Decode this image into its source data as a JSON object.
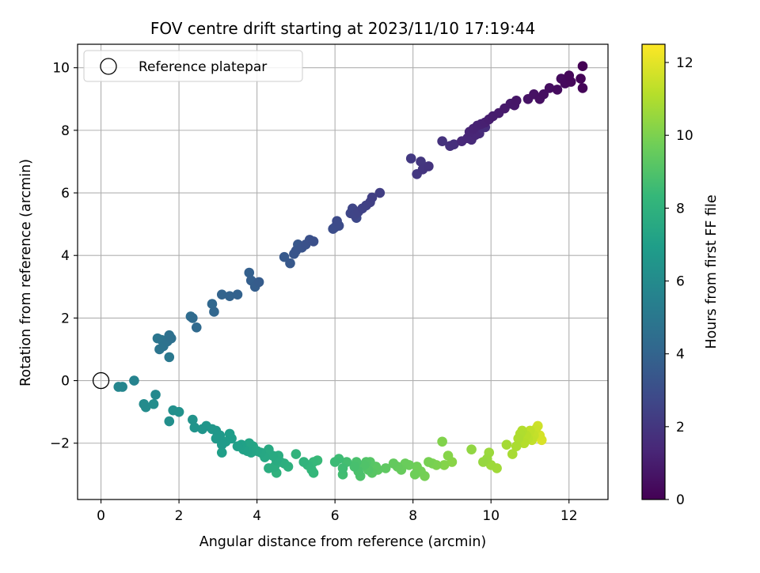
{
  "chart_data": {
    "type": "scatter",
    "title": "FOV centre drift starting at 2023/11/10 17:19:44",
    "xlabel": "Angular distance from reference (arcmin)",
    "ylabel": "Rotation from reference (arcmin)",
    "colorbar_label": "Hours from first FF file",
    "xlim": [
      -0.6,
      13.0
    ],
    "ylim": [
      -3.8,
      10.75
    ],
    "xticks": [
      0,
      2,
      4,
      6,
      8,
      10,
      12
    ],
    "yticks": [
      -2,
      0,
      2,
      4,
      6,
      8,
      10
    ],
    "colorbar_range": [
      0,
      12.5
    ],
    "colorbar_ticks": [
      0,
      2,
      4,
      6,
      8,
      10,
      12
    ],
    "colormap": "viridis",
    "grid": true,
    "legend": {
      "placement": "top-left",
      "label": "Reference platepar"
    },
    "reference_point": {
      "x": 0,
      "y": 0
    },
    "colors": {
      "grid": "#b0b0b0",
      "viridis_stops": [
        "#440154",
        "#482878",
        "#3e4989",
        "#31688e",
        "#26828e",
        "#1f9e89",
        "#35b779",
        "#6ece58",
        "#b5de2b",
        "#fde725"
      ]
    },
    "series": [
      {
        "points": [
          [
            12.35,
            10.05,
            0.05
          ],
          [
            12.3,
            9.65,
            0.1
          ],
          [
            12.35,
            9.35,
            0.15
          ],
          [
            12.0,
            9.75,
            0.2
          ],
          [
            12.05,
            9.55,
            0.25
          ],
          [
            11.9,
            9.5,
            0.3
          ],
          [
            11.8,
            9.65,
            0.35
          ],
          [
            11.7,
            9.3,
            0.4
          ],
          [
            11.5,
            9.35,
            0.45
          ],
          [
            11.35,
            9.15,
            0.5
          ],
          [
            11.25,
            9.0,
            0.55
          ],
          [
            11.1,
            9.15,
            0.6
          ],
          [
            10.95,
            9.0,
            0.65
          ],
          [
            10.65,
            8.95,
            0.75
          ],
          [
            10.6,
            8.8,
            0.8
          ],
          [
            10.5,
            8.85,
            0.85
          ],
          [
            10.35,
            8.7,
            0.9
          ],
          [
            10.2,
            8.55,
            0.95
          ],
          [
            10.05,
            8.45,
            1.0
          ],
          [
            9.95,
            8.35,
            1.05
          ],
          [
            9.85,
            8.25,
            1.1
          ],
          [
            9.75,
            8.2,
            1.15
          ],
          [
            9.65,
            8.15,
            1.2
          ],
          [
            9.55,
            8.05,
            1.25
          ],
          [
            9.45,
            7.95,
            1.3
          ],
          [
            9.6,
            7.85,
            1.35
          ],
          [
            9.4,
            7.75,
            1.4
          ],
          [
            9.25,
            7.65,
            1.45
          ],
          [
            9.5,
            7.7,
            1.5
          ],
          [
            9.7,
            7.9,
            1.55
          ],
          [
            9.85,
            8.1,
            1.6
          ],
          [
            9.05,
            7.55,
            1.7
          ],
          [
            8.95,
            7.5,
            1.75
          ],
          [
            8.75,
            7.65,
            1.8
          ],
          [
            8.4,
            6.85,
            1.9
          ],
          [
            8.25,
            6.75,
            1.95
          ],
          [
            8.2,
            7.0,
            2.0
          ],
          [
            8.1,
            6.6,
            2.05
          ],
          [
            7.95,
            7.1,
            2.1
          ],
          [
            7.15,
            6.0,
            2.3
          ],
          [
            6.95,
            5.85,
            2.35
          ],
          [
            6.9,
            5.7,
            2.4
          ],
          [
            6.8,
            5.6,
            2.45
          ],
          [
            6.7,
            5.5,
            2.5
          ],
          [
            6.6,
            5.4,
            2.55
          ],
          [
            6.5,
            5.3,
            2.6
          ],
          [
            6.45,
            5.5,
            2.65
          ],
          [
            6.4,
            5.35,
            2.7
          ],
          [
            6.55,
            5.2,
            2.75
          ],
          [
            6.05,
            5.1,
            2.85
          ],
          [
            6.1,
            4.95,
            2.9
          ],
          [
            5.95,
            4.85,
            2.95
          ],
          [
            6.0,
            4.9,
            3.0
          ],
          [
            5.45,
            4.45,
            3.1
          ],
          [
            5.35,
            4.5,
            3.15
          ],
          [
            5.25,
            4.35,
            3.2
          ],
          [
            5.15,
            4.25,
            3.25
          ],
          [
            5.0,
            4.15,
            3.3
          ],
          [
            4.95,
            4.05,
            3.35
          ],
          [
            5.05,
            4.35,
            3.4
          ],
          [
            4.85,
            3.75,
            3.45
          ],
          [
            4.7,
            3.95,
            3.5
          ],
          [
            4.05,
            3.15,
            3.65
          ],
          [
            3.95,
            3.0,
            3.7
          ],
          [
            3.85,
            3.2,
            3.75
          ],
          [
            3.8,
            3.45,
            3.8
          ],
          [
            3.5,
            2.75,
            3.9
          ],
          [
            3.3,
            2.7,
            3.95
          ],
          [
            3.1,
            2.75,
            4.0
          ],
          [
            2.9,
            2.2,
            4.1
          ],
          [
            2.85,
            2.45,
            4.15
          ],
          [
            2.45,
            1.7,
            4.3
          ],
          [
            2.35,
            2.0,
            4.35
          ],
          [
            2.3,
            2.05,
            4.4
          ],
          [
            1.8,
            1.35,
            4.6
          ],
          [
            1.75,
            1.45,
            4.65
          ],
          [
            1.7,
            1.25,
            4.7
          ],
          [
            1.6,
            1.1,
            4.75
          ],
          [
            1.55,
            1.3,
            4.8
          ],
          [
            1.5,
            1.0,
            4.85
          ],
          [
            1.45,
            1.35,
            4.9
          ],
          [
            1.75,
            0.75,
            5.0
          ],
          [
            0.85,
            0.0,
            5.6
          ],
          [
            0.55,
            -0.2,
            5.7
          ],
          [
            0.45,
            -0.2,
            5.75
          ],
          [
            1.4,
            -0.45,
            5.9
          ],
          [
            1.1,
            -0.75,
            6.0
          ],
          [
            1.15,
            -0.85,
            6.05
          ],
          [
            1.35,
            -0.75,
            6.1
          ],
          [
            1.75,
            -1.3,
            6.2
          ],
          [
            1.85,
            -0.95,
            6.25
          ],
          [
            2.0,
            -1.0,
            6.3
          ],
          [
            2.35,
            -1.25,
            6.4
          ],
          [
            2.4,
            -1.5,
            6.45
          ],
          [
            2.6,
            -1.55,
            6.5
          ],
          [
            2.7,
            -1.45,
            6.55
          ],
          [
            2.85,
            -1.55,
            6.6
          ],
          [
            2.95,
            -1.6,
            6.65
          ],
          [
            2.95,
            -1.85,
            6.7
          ],
          [
            3.05,
            -1.75,
            6.75
          ],
          [
            3.1,
            -2.05,
            6.8
          ],
          [
            3.2,
            -1.95,
            6.85
          ],
          [
            3.3,
            -1.7,
            6.9
          ],
          [
            3.35,
            -1.85,
            6.95
          ],
          [
            3.1,
            -2.3,
            7.0
          ],
          [
            3.5,
            -2.1,
            7.05
          ],
          [
            3.6,
            -2.05,
            7.1
          ],
          [
            3.65,
            -2.2,
            7.15
          ],
          [
            3.75,
            -2.25,
            7.2
          ],
          [
            3.8,
            -2.0,
            7.25
          ],
          [
            3.85,
            -2.3,
            7.3
          ],
          [
            3.9,
            -2.1,
            7.35
          ],
          [
            4.0,
            -2.25,
            7.4
          ],
          [
            4.1,
            -2.3,
            7.45
          ],
          [
            4.2,
            -2.45,
            7.5
          ],
          [
            4.3,
            -2.2,
            7.55
          ],
          [
            4.4,
            -2.4,
            7.6
          ],
          [
            4.5,
            -2.55,
            7.65
          ],
          [
            4.55,
            -2.4,
            7.7
          ],
          [
            4.3,
            -2.8,
            7.75
          ],
          [
            4.45,
            -2.75,
            7.8
          ],
          [
            4.6,
            -2.6,
            7.85
          ],
          [
            4.7,
            -2.65,
            7.9
          ],
          [
            4.8,
            -2.75,
            7.95
          ],
          [
            4.5,
            -2.95,
            8.0
          ],
          [
            5.0,
            -2.35,
            8.05
          ],
          [
            5.2,
            -2.6,
            8.1
          ],
          [
            5.3,
            -2.7,
            8.2
          ],
          [
            5.4,
            -2.85,
            8.25
          ],
          [
            5.45,
            -2.95,
            8.3
          ],
          [
            5.45,
            -2.6,
            8.35
          ],
          [
            5.55,
            -2.55,
            8.4
          ],
          [
            6.0,
            -2.6,
            8.5
          ],
          [
            6.1,
            -2.5,
            8.55
          ],
          [
            6.2,
            -2.8,
            8.6
          ],
          [
            6.2,
            -3.0,
            8.65
          ],
          [
            6.3,
            -2.6,
            8.7
          ],
          [
            6.5,
            -2.75,
            8.8
          ],
          [
            6.55,
            -2.6,
            8.85
          ],
          [
            6.6,
            -2.9,
            8.9
          ],
          [
            6.65,
            -3.05,
            8.95
          ],
          [
            6.75,
            -2.7,
            9.0
          ],
          [
            6.8,
            -2.6,
            9.05
          ],
          [
            6.85,
            -2.85,
            9.1
          ],
          [
            6.9,
            -2.6,
            9.15
          ],
          [
            6.95,
            -2.95,
            9.2
          ],
          [
            7.05,
            -2.75,
            9.25
          ],
          [
            7.1,
            -2.85,
            9.3
          ],
          [
            7.3,
            -2.8,
            9.35
          ],
          [
            7.5,
            -2.65,
            9.45
          ],
          [
            7.6,
            -2.75,
            9.5
          ],
          [
            7.7,
            -2.85,
            9.55
          ],
          [
            7.8,
            -2.65,
            9.6
          ],
          [
            7.9,
            -2.7,
            9.65
          ],
          [
            8.05,
            -3.0,
            9.7
          ],
          [
            8.1,
            -2.75,
            9.75
          ],
          [
            8.2,
            -2.9,
            9.8
          ],
          [
            8.3,
            -3.05,
            9.85
          ],
          [
            8.4,
            -2.6,
            9.9
          ],
          [
            8.5,
            -2.65,
            9.95
          ],
          [
            8.6,
            -2.7,
            10.0
          ],
          [
            8.75,
            -1.95,
            10.1
          ],
          [
            8.8,
            -2.7,
            10.15
          ],
          [
            8.9,
            -2.4,
            10.2
          ],
          [
            9.0,
            -2.6,
            10.25
          ],
          [
            9.5,
            -2.2,
            10.4
          ],
          [
            9.8,
            -2.6,
            10.5
          ],
          [
            9.9,
            -2.5,
            10.55
          ],
          [
            9.95,
            -2.3,
            10.6
          ],
          [
            10.0,
            -2.7,
            10.65
          ],
          [
            10.15,
            -2.8,
            10.7
          ],
          [
            10.4,
            -2.05,
            10.8
          ],
          [
            10.55,
            -2.35,
            10.85
          ],
          [
            10.65,
            -2.1,
            10.9
          ],
          [
            10.7,
            -1.85,
            10.95
          ],
          [
            10.75,
            -1.7,
            11.0
          ],
          [
            10.8,
            -1.6,
            11.05
          ],
          [
            10.85,
            -2.0,
            11.1
          ],
          [
            10.9,
            -1.75,
            11.15
          ],
          [
            10.95,
            -1.85,
            11.2
          ],
          [
            11.0,
            -1.6,
            11.3
          ],
          [
            11.05,
            -1.9,
            11.35
          ],
          [
            11.1,
            -1.75,
            11.4
          ],
          [
            11.15,
            -1.55,
            11.5
          ],
          [
            11.2,
            -1.45,
            11.6
          ],
          [
            11.25,
            -1.75,
            11.7
          ],
          [
            11.3,
            -1.9,
            11.8
          ]
        ]
      }
    ]
  }
}
